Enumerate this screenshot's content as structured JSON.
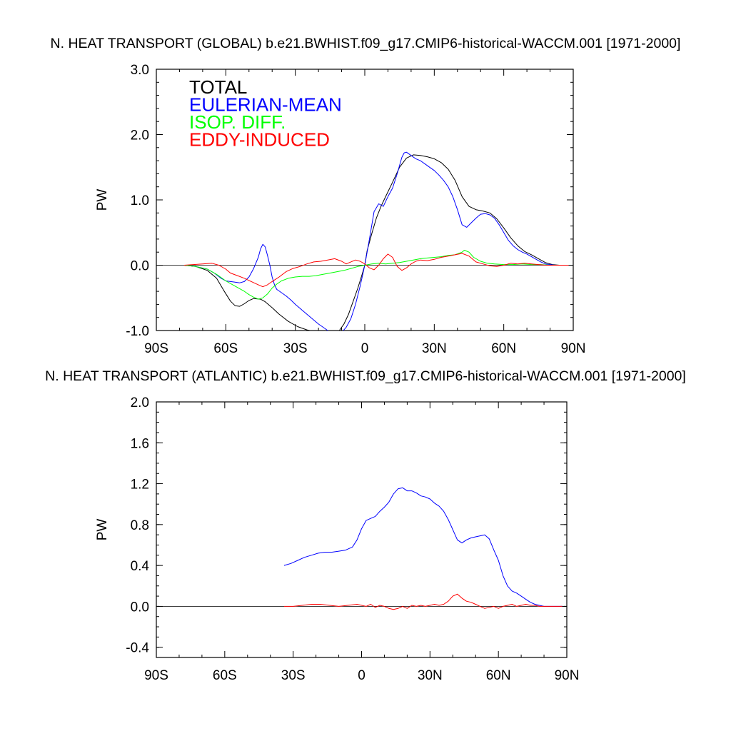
{
  "chart_data": [
    {
      "type": "line",
      "title": "N. HEAT TRANSPORT (GLOBAL) b.e21.BWHIST.f09_g17.CMIP6-historical-WACCM.001 [1971-2000]",
      "xlabel": "",
      "ylabel": "PW",
      "xlim": [
        -90,
        90
      ],
      "ylim": [
        -1.0,
        3.0
      ],
      "xticks": [
        -90,
        -60,
        -30,
        0,
        30,
        60,
        90
      ],
      "xtick_labels": [
        "90S",
        "60S",
        "30S",
        "0",
        "30N",
        "60N",
        "90N"
      ],
      "yticks": [
        -1.0,
        0.0,
        1.0,
        2.0,
        3.0
      ],
      "ytick_labels": [
        "-1.0",
        "0.0",
        "1.0",
        "2.0",
        "3.0"
      ],
      "legend_position": "top-left",
      "zero_line": true,
      "series": [
        {
          "name": "TOTAL",
          "color": "#000000",
          "x": [
            -78,
            -73,
            -68,
            -64,
            -61,
            -58,
            -56,
            -54,
            -52,
            -50,
            -48,
            -45,
            -43,
            -40,
            -37,
            -33,
            -29,
            -25,
            -21,
            -17,
            -15,
            -13,
            -11,
            -9,
            -7,
            -5,
            -3,
            -1,
            0,
            1,
            3,
            5,
            7,
            9,
            12,
            15,
            18,
            21,
            24,
            27,
            30,
            33,
            36,
            39,
            42,
            45,
            48,
            51,
            54,
            57,
            60,
            63,
            66,
            69,
            72,
            75,
            78,
            81,
            84,
            88
          ],
          "y": [
            0,
            -0.02,
            -0.08,
            -0.2,
            -0.38,
            -0.55,
            -0.62,
            -0.63,
            -0.59,
            -0.54,
            -0.51,
            -0.52,
            -0.56,
            -0.65,
            -0.75,
            -0.86,
            -0.94,
            -0.99,
            -1.02,
            -1.03,
            -1.03,
            -1.02,
            -1.0,
            -0.9,
            -0.75,
            -0.55,
            -0.35,
            -0.12,
            0,
            0.22,
            0.48,
            0.72,
            0.9,
            1.05,
            1.27,
            1.5,
            1.64,
            1.69,
            1.68,
            1.66,
            1.63,
            1.57,
            1.47,
            1.3,
            1.05,
            0.9,
            0.85,
            0.83,
            0.8,
            0.71,
            0.57,
            0.42,
            0.3,
            0.21,
            0.16,
            0.1,
            0.04,
            0.01,
            0,
            0
          ]
        },
        {
          "name": "EULERIAN-MEAN",
          "color": "#0000ff",
          "x": [
            -78,
            -73,
            -68,
            -65,
            -62,
            -60,
            -58,
            -56,
            -54,
            -52,
            -50,
            -48,
            -46,
            -45,
            -44,
            -43,
            -42,
            -41,
            -40,
            -39,
            -38,
            -36,
            -34,
            -32,
            -30,
            -28,
            -26,
            -24,
            -22,
            -20,
            -18,
            -16,
            -14,
            -12,
            -10,
            -8,
            -6,
            -4,
            -2,
            0,
            2,
            4,
            6,
            8,
            10,
            12,
            14,
            16,
            17,
            18,
            20,
            22,
            24,
            26,
            28,
            30,
            32,
            34,
            36,
            38,
            40,
            42,
            44,
            46,
            48,
            50,
            52,
            54,
            56,
            58,
            60,
            62,
            64,
            66,
            68,
            70,
            72,
            74,
            76,
            78,
            80,
            82,
            84,
            86,
            88
          ],
          "y": [
            0,
            -0.02,
            -0.06,
            -0.12,
            -0.2,
            -0.24,
            -0.25,
            -0.26,
            -0.27,
            -0.25,
            -0.18,
            -0.05,
            0.12,
            0.25,
            0.32,
            0.28,
            0.15,
            0.0,
            -0.18,
            -0.3,
            -0.37,
            -0.42,
            -0.47,
            -0.53,
            -0.6,
            -0.66,
            -0.72,
            -0.78,
            -0.84,
            -0.9,
            -0.95,
            -1.0,
            -1.04,
            -1.06,
            -1.03,
            -0.95,
            -0.82,
            -0.6,
            -0.32,
            0,
            0.4,
            0.82,
            0.94,
            0.9,
            1.05,
            1.18,
            1.4,
            1.65,
            1.72,
            1.73,
            1.68,
            1.63,
            1.6,
            1.55,
            1.5,
            1.45,
            1.38,
            1.3,
            1.2,
            1.05,
            0.85,
            0.62,
            0.58,
            0.65,
            0.72,
            0.78,
            0.79,
            0.77,
            0.72,
            0.62,
            0.5,
            0.38,
            0.3,
            0.24,
            0.2,
            0.17,
            0.13,
            0.09,
            0.05,
            0.02,
            0.01,
            0.0,
            0,
            0,
            0
          ]
        },
        {
          "name": "ISOP. DIFF.",
          "color": "#00ff00",
          "x": [
            -78,
            -73,
            -68,
            -64,
            -60,
            -56,
            -52,
            -50,
            -48,
            -46,
            -44,
            -42,
            -40,
            -38,
            -36,
            -33,
            -30,
            -27,
            -24,
            -21,
            -18,
            -15,
            -12,
            -9,
            -6,
            -3,
            0,
            3,
            6,
            9,
            12,
            15,
            18,
            21,
            24,
            27,
            30,
            33,
            36,
            39,
            42,
            43,
            45,
            47,
            50,
            53,
            56,
            60,
            64,
            68,
            72,
            76,
            80,
            84,
            88
          ],
          "y": [
            0,
            -0.02,
            -0.06,
            -0.14,
            -0.24,
            -0.32,
            -0.4,
            -0.45,
            -0.49,
            -0.52,
            -0.5,
            -0.44,
            -0.35,
            -0.29,
            -0.24,
            -0.2,
            -0.18,
            -0.17,
            -0.17,
            -0.16,
            -0.14,
            -0.12,
            -0.1,
            -0.08,
            -0.05,
            -0.02,
            0,
            0.02,
            0.03,
            0.02,
            0.03,
            0.04,
            0.06,
            0.08,
            0.1,
            0.11,
            0.12,
            0.13,
            0.15,
            0.16,
            0.2,
            0.23,
            0.2,
            0.12,
            0.06,
            0.03,
            0.02,
            0.01,
            0.01,
            0.02,
            0.01,
            0.01,
            0,
            0,
            0
          ]
        },
        {
          "name": "EDDY-INDUCED",
          "color": "#ff0000",
          "x": [
            -78,
            -74,
            -70,
            -66,
            -63,
            -60,
            -58,
            -55,
            -52,
            -49,
            -46,
            -44,
            -42,
            -40,
            -37,
            -34,
            -31,
            -28,
            -25,
            -22,
            -19,
            -16,
            -13,
            -10,
            -8,
            -6,
            -4,
            -2,
            0,
            2,
            4,
            6,
            8,
            10,
            12,
            14,
            16,
            18,
            20,
            22,
            24,
            27,
            30,
            33,
            36,
            39,
            42,
            45,
            48,
            51,
            54,
            57,
            60,
            63,
            66,
            69,
            72,
            75,
            78,
            81,
            84,
            88
          ],
          "y": [
            0,
            0.01,
            0.02,
            0.03,
            0.0,
            -0.06,
            -0.12,
            -0.16,
            -0.2,
            -0.25,
            -0.3,
            -0.33,
            -0.3,
            -0.25,
            -0.18,
            -0.1,
            -0.05,
            -0.02,
            0.02,
            0.05,
            0.06,
            0.08,
            0.1,
            0.06,
            0.02,
            0.05,
            0.08,
            0.06,
            0.02,
            -0.04,
            -0.07,
            0.0,
            0.1,
            0.17,
            0.12,
            -0.02,
            -0.08,
            -0.04,
            0.02,
            0.06,
            0.08,
            0.07,
            0.09,
            0.12,
            0.14,
            0.16,
            0.18,
            0.14,
            0.05,
            0.02,
            -0.01,
            -0.02,
            0.0,
            0.03,
            0.02,
            0.03,
            0.02,
            0.01,
            0,
            0,
            0,
            0
          ]
        }
      ]
    },
    {
      "type": "line",
      "title": "N. HEAT TRANSPORT (ATLANTIC) b.e21.BWHIST.f09_g17.CMIP6-historical-WACCM.001 [1971-2000]",
      "xlabel": "",
      "ylabel": "PW",
      "xlim": [
        -90,
        90
      ],
      "ylim": [
        -0.5,
        2.0
      ],
      "xticks": [
        -90,
        -60,
        -30,
        0,
        30,
        60,
        90
      ],
      "xtick_labels": [
        "90S",
        "60S",
        "30S",
        "0",
        "30N",
        "60N",
        "90N"
      ],
      "yticks": [
        -0.4,
        0.0,
        0.4,
        0.8,
        1.2,
        1.6,
        2.0
      ],
      "ytick_labels": [
        "-0.4",
        "0.0",
        "0.4",
        "0.8",
        "1.2",
        "1.6",
        "2.0"
      ],
      "zero_line": true,
      "series": [
        {
          "name": "EULERIAN-MEAN",
          "color": "#0000ff",
          "x": [
            -34,
            -31,
            -28,
            -25,
            -22,
            -19,
            -16,
            -13,
            -10,
            -7,
            -4,
            -2,
            0,
            2,
            4,
            6,
            8,
            10,
            12,
            14,
            16,
            18,
            20,
            22,
            24,
            26,
            28,
            30,
            32,
            34,
            36,
            38,
            40,
            42,
            44,
            46,
            48,
            50,
            52,
            54,
            56,
            58,
            60,
            62,
            64,
            66,
            68,
            70,
            72,
            74,
            76,
            78,
            80,
            82,
            84,
            86,
            88
          ],
          "y": [
            0.4,
            0.42,
            0.45,
            0.48,
            0.5,
            0.52,
            0.53,
            0.53,
            0.54,
            0.55,
            0.58,
            0.65,
            0.76,
            0.84,
            0.86,
            0.88,
            0.93,
            0.97,
            1.02,
            1.1,
            1.15,
            1.16,
            1.13,
            1.13,
            1.11,
            1.08,
            1.07,
            1.05,
            1.01,
            0.98,
            0.93,
            0.85,
            0.75,
            0.65,
            0.62,
            0.65,
            0.67,
            0.68,
            0.69,
            0.7,
            0.66,
            0.55,
            0.45,
            0.3,
            0.2,
            0.15,
            0.13,
            0.1,
            0.07,
            0.04,
            0.02,
            0.01,
            0,
            0,
            0,
            0,
            0
          ]
        },
        {
          "name": "EDDY-INDUCED",
          "color": "#ff0000",
          "x": [
            -34,
            -30,
            -26,
            -22,
            -18,
            -14,
            -10,
            -6,
            -2,
            0,
            2,
            4,
            6,
            8,
            10,
            12,
            14,
            16,
            18,
            20,
            22,
            24,
            26,
            28,
            30,
            32,
            34,
            36,
            38,
            40,
            42,
            44,
            46,
            48,
            50,
            52,
            54,
            56,
            58,
            60,
            62,
            64,
            66,
            68,
            70,
            72,
            74,
            76,
            78,
            80,
            84,
            88
          ],
          "y": [
            0,
            0.0,
            0.01,
            0.02,
            0.02,
            0.01,
            0.0,
            0.01,
            0.02,
            0.01,
            0.0,
            0.02,
            -0.01,
            0.01,
            0.0,
            -0.02,
            -0.03,
            -0.02,
            0.0,
            -0.02,
            0.01,
            0.0,
            0.01,
            0.0,
            0.01,
            0.02,
            0.01,
            0.02,
            0.05,
            0.1,
            0.12,
            0.08,
            0.05,
            0.04,
            0.02,
            0.0,
            -0.02,
            -0.01,
            0.0,
            -0.02,
            0.0,
            0.01,
            0.02,
            0.0,
            0.01,
            0.02,
            0.01,
            0.01,
            0,
            0,
            0,
            0
          ]
        }
      ]
    }
  ]
}
